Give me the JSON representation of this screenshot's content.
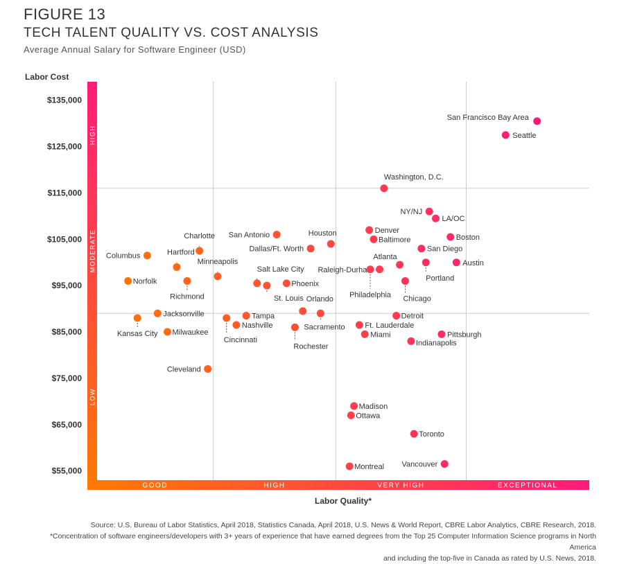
{
  "header": {
    "figure_label": "FIGURE 13",
    "title": "TECH TALENT QUALITY VS. COST ANALYSIS",
    "subtitle": "Average Annual Salary for Software Engineer (USD)"
  },
  "footer": {
    "source": "Source: U.S. Bureau of Labor Statistics, April 2018, Statistics Canada, April 2018, U.S. News & World Report, CBRE Labor Analytics, CBRE Research, 2018.",
    "footnote_line1": "*Concentration of software engineers/developers with 3+ years of experience that have earned degrees from the Top 25 Computer Information Science programs in North America",
    "footnote_line2": "and including the top-five in Canada as rated by U.S. News, 2018."
  },
  "colors": {
    "low_orange": "#ff7a00",
    "high_pink": "#ff1a7a",
    "grid": "#cccccc"
  },
  "chart_data": {
    "type": "scatter",
    "title": "TECH TALENT QUALITY VS. COST ANALYSIS",
    "ylabel": "Labor Cost",
    "xlabel": "Labor Quality*",
    "ylim": [
      53000,
      139000
    ],
    "yticks": [
      55000,
      65000,
      75000,
      85000,
      95000,
      105000,
      115000,
      125000,
      135000
    ],
    "ytick_labels": [
      "$55,000",
      "$65,000",
      "$75,000",
      "$85,000",
      "$95,000",
      "$105,000",
      "$115,000",
      "$125,000",
      "$135,000"
    ],
    "cost_bands": [
      "LOW",
      "MODERATE",
      "HIGH"
    ],
    "quality_bands": [
      "GOOD",
      "HIGH",
      "VERY HIGH",
      "EXCEPTIONAL"
    ],
    "hlines": [
      89000,
      116000
    ],
    "quality_index_range": [
      0,
      100
    ],
    "quality_band_edges": [
      23.6,
      48.5,
      75.0
    ],
    "points": [
      {
        "name": "San Francisco Bay Area",
        "x": 89.4,
        "y": 130500,
        "lx": -12,
        "ly": -2,
        "anchor": "end"
      },
      {
        "name": "Seattle",
        "x": 83.0,
        "y": 127500,
        "lx": 10,
        "ly": 4,
        "anchor": "start"
      },
      {
        "name": "Washington, D.C.",
        "x": 58.3,
        "y": 116000,
        "lx": 0,
        "ly": -13,
        "anchor": "start"
      },
      {
        "name": "NY/NJ",
        "x": 67.5,
        "y": 111000,
        "lx": -10,
        "ly": 4,
        "anchor": "end"
      },
      {
        "name": "LA/OC",
        "x": 68.8,
        "y": 109500,
        "lx": 9,
        "ly": 4,
        "anchor": "start"
      },
      {
        "name": "Denver",
        "x": 55.3,
        "y": 107000,
        "lx": 8,
        "ly": 4,
        "anchor": "start"
      },
      {
        "name": "Baltimore",
        "x": 56.2,
        "y": 105000,
        "lx": 7,
        "ly": 4,
        "anchor": "start"
      },
      {
        "name": "Boston",
        "x": 71.8,
        "y": 105500,
        "lx": 8,
        "ly": 4,
        "anchor": "start"
      },
      {
        "name": "San Diego",
        "x": 65.9,
        "y": 103000,
        "lx": 8,
        "ly": 4,
        "anchor": "start"
      },
      {
        "name": "Atlanta",
        "x": 61.5,
        "y": 99500,
        "lx": -4,
        "ly": -8,
        "anchor": "end"
      },
      {
        "name": "Austin",
        "x": 73.0,
        "y": 100000,
        "lx": 9,
        "ly": 4,
        "anchor": "start"
      },
      {
        "name": "Portland",
        "x": 66.8,
        "y": 100000,
        "lx": 0,
        "ly": 26,
        "anchor": "start"
      },
      {
        "name": "Raleigh-Durham",
        "x": 57.4,
        "y": 98500,
        "lx": -9,
        "ly": 4,
        "anchor": "end"
      },
      {
        "name": "Philadelphia",
        "x": 55.5,
        "y": 98500,
        "lx": 0,
        "ly": 40,
        "anchor": "middle"
      },
      {
        "name": "Chicago",
        "x": 62.6,
        "y": 96000,
        "lx": -3,
        "ly": 29,
        "anchor": "start"
      },
      {
        "name": "Detroit",
        "x": 60.8,
        "y": 88500,
        "lx": 7,
        "ly": 4,
        "anchor": "start"
      },
      {
        "name": "Ft. Lauderdale",
        "x": 53.3,
        "y": 86500,
        "lx": 8,
        "ly": 4,
        "anchor": "start"
      },
      {
        "name": "Miami",
        "x": 54.4,
        "y": 84500,
        "lx": 8,
        "ly": 4,
        "anchor": "start"
      },
      {
        "name": "Pittsburgh",
        "x": 70.0,
        "y": 84500,
        "lx": 8,
        "ly": 4,
        "anchor": "start"
      },
      {
        "name": "Indianapolis",
        "x": 63.8,
        "y": 83000,
        "lx": 7,
        "ly": 6,
        "anchor": "start"
      },
      {
        "name": "Houston",
        "x": 47.5,
        "y": 104000,
        "lx": -12,
        "ly": -12,
        "anchor": "middle"
      },
      {
        "name": "San Antonio",
        "x": 36.5,
        "y": 106000,
        "lx": -10,
        "ly": 4,
        "anchor": "end"
      },
      {
        "name": "Dallas/Ft. Worth",
        "x": 43.4,
        "y": 103000,
        "lx": -10,
        "ly": 4,
        "anchor": "end"
      },
      {
        "name": "Salt Lake City",
        "x": 32.5,
        "y": 95500,
        "lx": 0,
        "ly": -17,
        "anchor": "start"
      },
      {
        "name": "St. Louis",
        "x": 34.5,
        "y": 95000,
        "lx": 10,
        "ly": 22,
        "anchor": "start"
      },
      {
        "name": "Phoenix",
        "x": 38.5,
        "y": 95500,
        "lx": 7,
        "ly": 4,
        "anchor": "start"
      },
      {
        "name": "Orlando",
        "x": 41.8,
        "y": 89500,
        "lx": 5,
        "ly": -14,
        "anchor": "start"
      },
      {
        "name": "Sacramento",
        "x": 45.4,
        "y": 89000,
        "lx": -24,
        "ly": 23,
        "anchor": "start"
      },
      {
        "name": "Tampa",
        "x": 30.3,
        "y": 88500,
        "lx": 8,
        "ly": 4,
        "anchor": "start"
      },
      {
        "name": "Nashville",
        "x": 28.3,
        "y": 86500,
        "lx": 8,
        "ly": 4,
        "anchor": "start"
      },
      {
        "name": "Cincinnati",
        "x": 26.3,
        "y": 88000,
        "lx": -4,
        "ly": 35,
        "anchor": "start"
      },
      {
        "name": "Rochester",
        "x": 40.2,
        "y": 86000,
        "lx": -2,
        "ly": 31,
        "anchor": "start"
      },
      {
        "name": "Charlotte",
        "x": 20.8,
        "y": 102500,
        "lx": 0,
        "ly": -18,
        "anchor": "middle"
      },
      {
        "name": "Minneapolis",
        "x": 24.5,
        "y": 97000,
        "lx": 0,
        "ly": -18,
        "anchor": "middle"
      },
      {
        "name": "Columbus",
        "x": 10.2,
        "y": 101500,
        "lx": -10,
        "ly": 4,
        "anchor": "end"
      },
      {
        "name": "Hartford",
        "x": 16.2,
        "y": 99000,
        "lx": -14,
        "ly": -18,
        "anchor": "start"
      },
      {
        "name": "Norfolk",
        "x": 6.3,
        "y": 96000,
        "lx": 7,
        "ly": 4,
        "anchor": "start"
      },
      {
        "name": "Richmond",
        "x": 18.3,
        "y": 96000,
        "lx": 0,
        "ly": 26,
        "anchor": "middle"
      },
      {
        "name": "Jacksonville",
        "x": 12.3,
        "y": 89000,
        "lx": 8,
        "ly": 4,
        "anchor": "start"
      },
      {
        "name": "Kansas City",
        "x": 8.2,
        "y": 88000,
        "lx": 0,
        "ly": 26,
        "anchor": "middle"
      },
      {
        "name": "Milwaukee",
        "x": 14.3,
        "y": 85000,
        "lx": 7,
        "ly": 4,
        "anchor": "start"
      },
      {
        "name": "Cleveland",
        "x": 22.5,
        "y": 77000,
        "lx": -10,
        "ly": 4,
        "anchor": "end"
      },
      {
        "name": "Madison",
        "x": 52.2,
        "y": 69000,
        "lx": 7,
        "ly": 4,
        "anchor": "start"
      },
      {
        "name": "Ottawa",
        "x": 51.6,
        "y": 67000,
        "lx": 7,
        "ly": 4,
        "anchor": "start"
      },
      {
        "name": "Toronto",
        "x": 64.4,
        "y": 63000,
        "lx": 7,
        "ly": 4,
        "anchor": "start"
      },
      {
        "name": "Vancouver",
        "x": 70.6,
        "y": 56500,
        "lx": -10,
        "ly": 4,
        "anchor": "end"
      },
      {
        "name": "Montreal",
        "x": 51.3,
        "y": 56000,
        "lx": 7,
        "ly": 4,
        "anchor": "start"
      }
    ]
  }
}
